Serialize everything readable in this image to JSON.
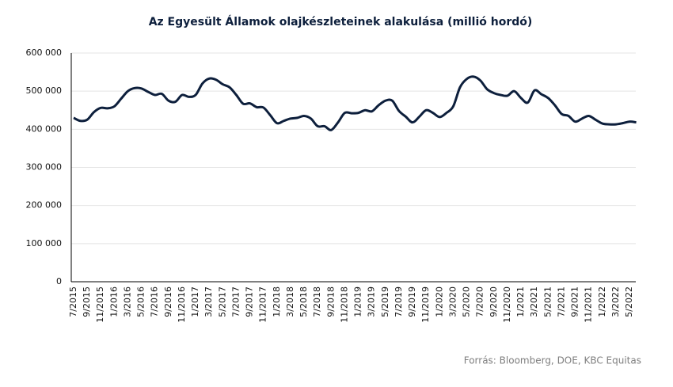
{
  "chart_data": {
    "type": "line",
    "title": "Az Egyesült  Államok olajkészleteinek alakulása (millió hordó)",
    "source": "Forrás: Bloomberg,  DOE, KBC Equitas",
    "categories": [
      "7/2015",
      null,
      "9/2015",
      null,
      "11/2015",
      null,
      "1/2016",
      null,
      "3/2016",
      null,
      "5/2016",
      null,
      "7/2016",
      null,
      "9/2016",
      null,
      "11/2016",
      null,
      "1/2017",
      null,
      "3/2017",
      null,
      "5/2017",
      null,
      "7/2017",
      null,
      "9/2017",
      null,
      "11/2017",
      null,
      "1/2018",
      null,
      "3/2018",
      null,
      "5/2018",
      null,
      "7/2018",
      null,
      "9/2018",
      null,
      "11/2018",
      null,
      "1/2019",
      null,
      "3/2019",
      null,
      "5/2019",
      null,
      "7/2019",
      null,
      "9/2019",
      null,
      "11/2019",
      null,
      "1/2020",
      null,
      "3/2020",
      null,
      "5/2020",
      null,
      "7/2020",
      null,
      "9/2020",
      null,
      "11/2020",
      null,
      "1/2021",
      null,
      "3/2021",
      null,
      "5/2021",
      null,
      "7/2021",
      null,
      "9/2021",
      null,
      "11/2021",
      null,
      "1/2022",
      null,
      "3/2022",
      null,
      "5/2022",
      null
    ],
    "series": [
      {
        "color": "#0d1f3c",
        "values": [
          430000,
          422000,
          425000,
          445000,
          456000,
          455000,
          460000,
          480000,
          500000,
          508000,
          507000,
          498000,
          490000,
          493000,
          475000,
          472000,
          490000,
          485000,
          490000,
          520000,
          533000,
          530000,
          518000,
          510000,
          490000,
          467000,
          468000,
          458000,
          457000,
          437000,
          416000,
          422000,
          428000,
          430000,
          435000,
          428000,
          408000,
          408000,
          398000,
          418000,
          443000,
          442000,
          443000,
          450000,
          447000,
          463000,
          475000,
          475000,
          448000,
          433000,
          418000,
          433000,
          450000,
          443000,
          432000,
          443000,
          460000,
          510000,
          532000,
          538000,
          528000,
          505000,
          495000,
          490000,
          488000,
          500000,
          482000,
          470000,
          502000,
          492000,
          482000,
          463000,
          440000,
          435000,
          420000,
          428000,
          435000,
          425000,
          415000,
          413000,
          413000,
          416000,
          420000,
          418000
        ]
      }
    ],
    "ylim": [
      0,
      600000
    ],
    "yticks": [
      0,
      {
        "value": 100000,
        "label": "100 000"
      },
      {
        "value": 200000,
        "label": "200 000"
      },
      {
        "value": 300000,
        "label": "300 000"
      },
      {
        "value": 400000,
        "label": "400 000"
      },
      {
        "value": 500000,
        "label": "500 000"
      },
      {
        "value": 600000,
        "label": "600 000"
      }
    ],
    "grid": true
  }
}
